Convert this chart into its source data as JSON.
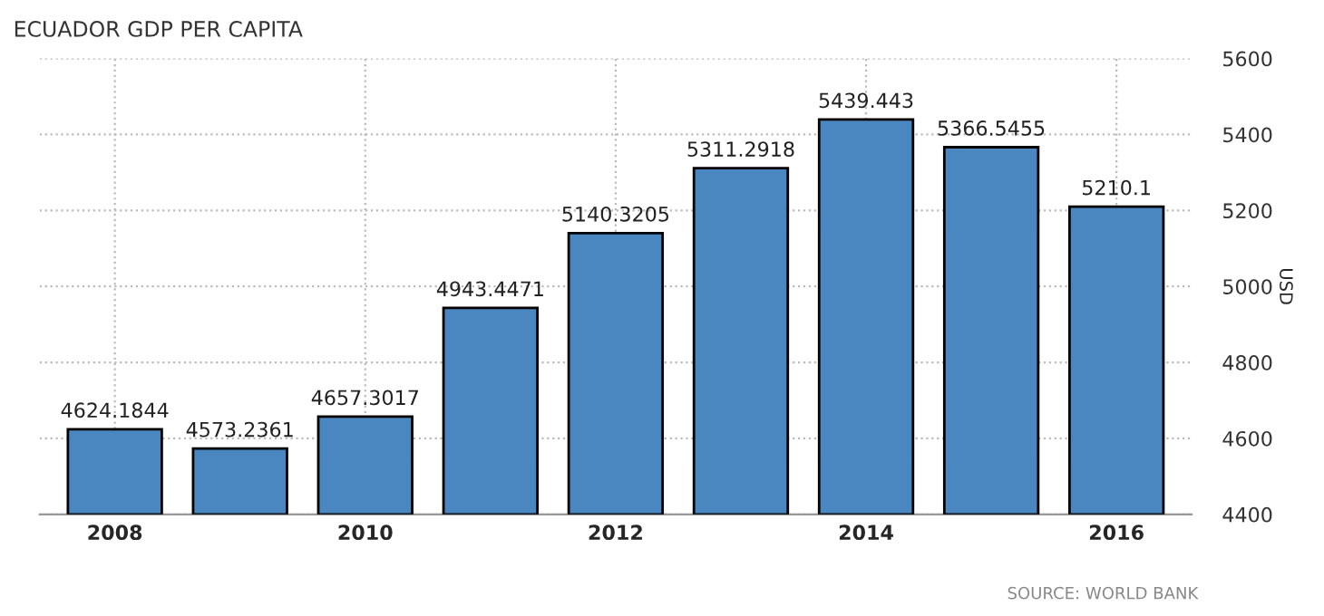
{
  "chart_data": {
    "type": "bar",
    "title": "ECUADOR GDP PER CAPITA",
    "ylabel": "USD",
    "categories": [
      "2008",
      null,
      "2010",
      null,
      "2012",
      null,
      "2014",
      null,
      "2016"
    ],
    "values": [
      4624.1844,
      4573.2361,
      4657.3017,
      4943.4471,
      5140.3205,
      5311.2918,
      5439.443,
      5366.5455,
      5210.1
    ],
    "color": "#4a86bf",
    "ylim": [
      4400,
      5600
    ],
    "yticks": [
      4400,
      4600,
      4800,
      5000,
      5200,
      5400,
      5600
    ],
    "grid": true,
    "data_labels": true,
    "annotations": [
      "SOURCE: WORLD BANK"
    ]
  }
}
